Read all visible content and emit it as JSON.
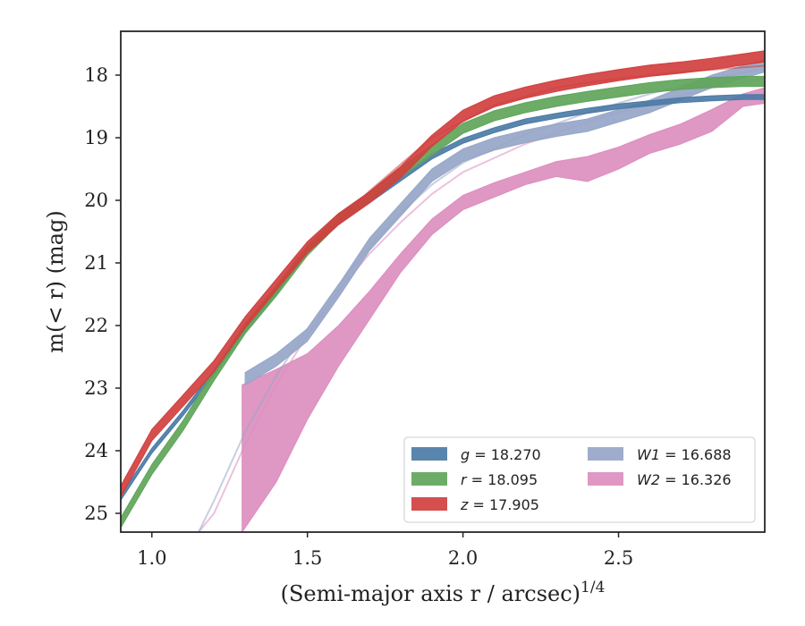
{
  "chart_data": {
    "type": "line",
    "xlabel": "(Semi-major axis r / arcsec)",
    "xlabel_sup": "1/4",
    "ylabel": "m(< r) (mag)",
    "xlim": [
      0.9,
      2.97
    ],
    "ylim": [
      25.3,
      17.3
    ],
    "y_inverted": true,
    "x_ticks": [
      1.0,
      1.5,
      2.0,
      2.5
    ],
    "x_tick_labels": [
      "1.0",
      "1.5",
      "2.0",
      "2.5"
    ],
    "y_ticks": [
      18,
      19,
      20,
      21,
      22,
      23,
      24,
      25
    ],
    "y_tick_labels": [
      "18",
      "19",
      "20",
      "21",
      "22",
      "23",
      "24",
      "25"
    ],
    "grid": false,
    "legend_position": "lower-right",
    "series": [
      {
        "name": "g = 18.270",
        "band": "g",
        "total_mag": "18.270",
        "color": "#4c7ba6",
        "band_half_width": 0.04,
        "x": [
          0.9,
          1.0,
          1.1,
          1.2,
          1.3,
          1.4,
          1.5,
          1.6,
          1.7,
          1.8,
          1.9,
          2.0,
          2.1,
          2.2,
          2.3,
          2.4,
          2.5,
          2.6,
          2.7,
          2.8,
          2.9,
          2.97
        ],
        "y": [
          24.75,
          24.0,
          23.4,
          22.75,
          22.05,
          21.45,
          20.8,
          20.35,
          20.0,
          19.65,
          19.3,
          19.05,
          18.88,
          18.74,
          18.65,
          18.57,
          18.5,
          18.45,
          18.4,
          18.37,
          18.35,
          18.35
        ],
        "model_x": [],
        "model_y": []
      },
      {
        "name": "r = 18.095",
        "band": "r",
        "total_mag": "18.095",
        "color": "#5fa55a",
        "band_half_width": 0.08,
        "x": [
          0.9,
          1.0,
          1.1,
          1.2,
          1.3,
          1.4,
          1.5,
          1.6,
          1.7,
          1.8,
          1.9,
          2.0,
          2.1,
          2.2,
          2.3,
          2.4,
          2.5,
          2.6,
          2.7,
          2.8,
          2.9,
          2.97
        ],
        "y": [
          25.15,
          24.3,
          23.6,
          22.8,
          22.05,
          21.45,
          20.8,
          20.3,
          19.95,
          19.55,
          19.2,
          18.85,
          18.65,
          18.52,
          18.42,
          18.34,
          18.27,
          18.2,
          18.15,
          18.12,
          18.1,
          18.1
        ],
        "model_x": [],
        "model_y": []
      },
      {
        "name": "z = 17.905",
        "band": "z",
        "total_mag": "17.905",
        "color": "#d0403f",
        "band_half_width": 0.09,
        "x": [
          0.9,
          1.0,
          1.1,
          1.2,
          1.3,
          1.4,
          1.5,
          1.6,
          1.7,
          1.8,
          1.9,
          2.0,
          2.1,
          2.2,
          2.3,
          2.4,
          2.5,
          2.6,
          2.7,
          2.8,
          2.9,
          2.97
        ],
        "y": [
          24.65,
          23.75,
          23.2,
          22.65,
          21.95,
          21.35,
          20.75,
          20.3,
          19.95,
          19.55,
          19.05,
          18.65,
          18.42,
          18.28,
          18.17,
          18.08,
          18.0,
          17.93,
          17.88,
          17.82,
          17.75,
          17.7
        ],
        "model_x": [
          1.3,
          1.5,
          1.7,
          1.9,
          2.1,
          2.3,
          2.5,
          2.7,
          2.97
        ],
        "model_y": [
          22.0,
          20.8,
          19.85,
          19.0,
          18.48,
          18.2,
          18.05,
          17.95,
          17.85
        ]
      },
      {
        "name": "W1 = 16.688",
        "band": "W1",
        "total_mag": "16.688",
        "color": "#97a6c8",
        "band_half_width": 0.1,
        "x": [
          1.3,
          1.4,
          1.5,
          1.6,
          1.7,
          1.8,
          1.9,
          2.0,
          2.1,
          2.2,
          2.3,
          2.4,
          2.5,
          2.6,
          2.7,
          2.8,
          2.9,
          2.97
        ],
        "y": [
          22.85,
          22.55,
          22.15,
          21.45,
          20.7,
          20.15,
          19.6,
          19.28,
          19.1,
          18.98,
          18.88,
          18.8,
          18.65,
          18.5,
          18.3,
          18.1,
          17.95,
          17.85
        ],
        "model_x": [
          1.15,
          1.2,
          1.3,
          1.4,
          1.5,
          1.6,
          1.7,
          1.8,
          1.9,
          2.0,
          2.2,
          2.4,
          2.6,
          2.8,
          2.97
        ],
        "model_y": [
          25.3,
          24.8,
          23.7,
          22.8,
          22.05,
          21.35,
          20.75,
          20.2,
          19.75,
          19.4,
          18.95,
          18.6,
          18.3,
          18.05,
          17.9
        ]
      },
      {
        "name": "W2 = 16.326",
        "band": "W2",
        "total_mag": "16.326",
        "color": "#dc8ebf",
        "x": [
          1.29,
          1.4,
          1.5,
          1.6,
          1.7,
          1.8,
          1.9,
          2.0,
          2.1,
          2.2,
          2.3,
          2.4,
          2.5,
          2.6,
          2.7,
          2.8,
          2.9,
          2.97
        ],
        "y_upper": [
          22.95,
          22.7,
          22.45,
          22.0,
          21.45,
          20.85,
          20.3,
          19.92,
          19.72,
          19.55,
          19.38,
          19.3,
          19.15,
          18.95,
          18.78,
          18.55,
          18.3,
          18.2
        ],
        "y_lower": [
          25.3,
          24.5,
          23.5,
          22.65,
          21.9,
          21.15,
          20.55,
          20.15,
          19.95,
          19.75,
          19.62,
          19.7,
          19.5,
          19.25,
          19.1,
          18.9,
          18.5,
          18.45
        ],
        "model_x": [
          1.15,
          1.2,
          1.3,
          1.4,
          1.5,
          1.6,
          1.7,
          1.8,
          1.9,
          2.0,
          2.2,
          2.4,
          2.6,
          2.8,
          2.97
        ],
        "model_y": [
          25.3,
          25.0,
          23.9,
          22.95,
          22.15,
          21.45,
          20.85,
          20.35,
          19.9,
          19.55,
          19.1,
          18.75,
          18.45,
          18.2,
          18.05
        ]
      }
    ]
  }
}
